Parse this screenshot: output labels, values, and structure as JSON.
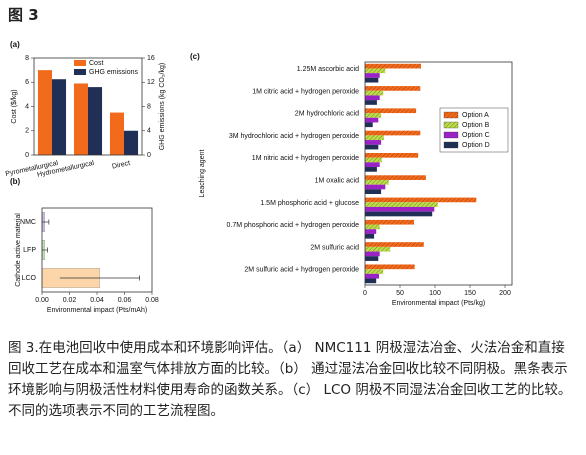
{
  "heading": "图 3",
  "chart_data": [
    {
      "type": "bar",
      "panel": "(a)",
      "categories": [
        "Pyrometallurgical",
        "Hydrometallurgical",
        "Direct"
      ],
      "ylabel": "Cost ($/kg)",
      "y2label": "GHG emissions (kg CO₂/kg)",
      "ylim": [
        0,
        8
      ],
      "yticks": [
        0,
        2,
        4,
        6,
        8
      ],
      "y2lim": [
        0,
        16
      ],
      "y2ticks": [
        0,
        4,
        8,
        12,
        16
      ],
      "legend": "upper right",
      "series": [
        {
          "name": "Cost",
          "color": "#f26b1d",
          "values": [
            7.0,
            5.9,
            3.5
          ]
        },
        {
          "name": "GHG emissions",
          "color": "#1f2f55",
          "axis": "y2",
          "values": [
            12.5,
            11.2,
            4.0
          ]
        }
      ]
    },
    {
      "type": "barh",
      "panel": "(b)",
      "categories": [
        "NMC",
        "LFP",
        "LCO"
      ],
      "values": [
        0.002,
        0.002,
        0.042
      ],
      "errors": [
        0.003,
        0.002,
        0.029
      ],
      "colors": [
        "#cbbbe0",
        "#bfe0b4",
        "#fcd6a9"
      ],
      "xlabel": "Environmental impact (Pts/mAh)",
      "ylabel": "Cathode active material",
      "xlim": [
        0,
        0.08
      ],
      "xticks": [
        {
          "value": 0,
          "label": "0.00"
        },
        0.02,
        0.04,
        0.06,
        0.08
      ]
    },
    {
      "type": "barh",
      "panel": "(c)",
      "categories": [
        "1.25M ascorbic acid",
        "1M citric acid + hydrogen peroxide",
        "2M hydrochloric acid",
        "3M hydrochloric acid + hydrogen peroxide",
        "1M nitric acid + hydrogen peroxide",
        "1M oxalic acid",
        "1.5M phosphoric acid + glucose",
        "0.7M phosphoric acid + hydrogen peroxide",
        "2M sulfuric acid",
        "2M sulfuric acid + hydrogen peroxide"
      ],
      "xlabel": "Environmental impact (Pts/kg)",
      "ylabel": "Leaching agent",
      "xlim": [
        0,
        210
      ],
      "xticks": [
        0,
        50,
        100,
        150,
        200
      ],
      "legend": "center right",
      "series": [
        {
          "name": "Option A",
          "color": "#f26b1d",
          "hatch": true,
          "values": [
            80,
            79,
            73,
            79,
            76,
            87,
            159,
            70,
            84,
            71
          ]
        },
        {
          "name": "Option B",
          "color": "#b6e04c",
          "hatch": true,
          "values": [
            29,
            26,
            23,
            27,
            24,
            34,
            104,
            21,
            36,
            26
          ]
        },
        {
          "name": "Option C",
          "color": "#9a22c6",
          "values": [
            21,
            21,
            19,
            23,
            21,
            29,
            99,
            16,
            21,
            20
          ]
        },
        {
          "name": "Option D",
          "color": "#1f2f55",
          "values": [
            19,
            17,
            11,
            19,
            17,
            23,
            96,
            13,
            19,
            16
          ]
        }
      ]
    }
  ],
  "caption": "图 3.在电池回收中使用成本和环境影响评估。（a） NMC111 阴极湿法冶金、火法冶金和直接回收工艺在成本和温室气体排放方面的比较。（b） 通过湿法冶金回收比较不同阴极。黑条表示环境影响与阴极活性材料使用寿命的函数关系。（c） LCO 阴极不同湿法冶金回收工艺的比较。不同的选项表示不同的工艺流程图。"
}
